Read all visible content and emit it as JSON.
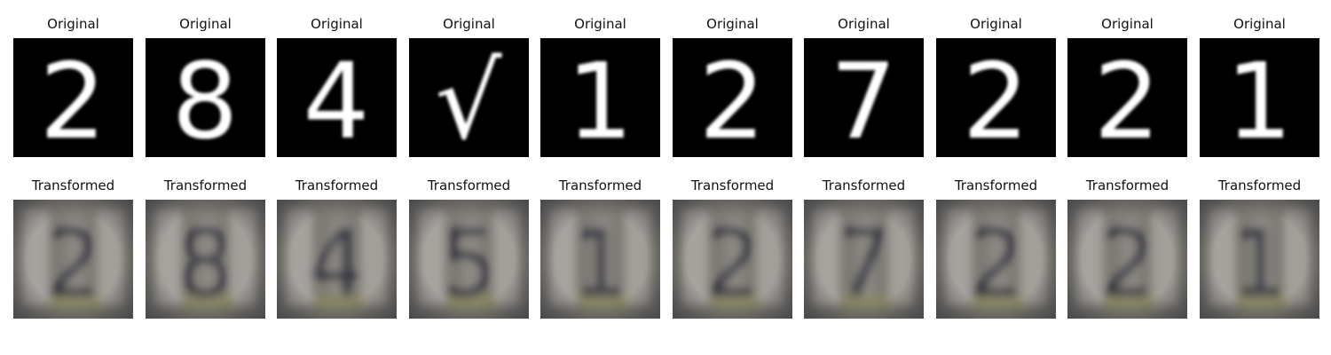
{
  "originals": [
    {
      "title": "Original",
      "digit": "2"
    },
    {
      "title": "Original",
      "digit": "8"
    },
    {
      "title": "Original",
      "digit": "4"
    },
    {
      "title": "Original",
      "digit": "√"
    },
    {
      "title": "Original",
      "digit": "1"
    },
    {
      "title": "Original",
      "digit": "2"
    },
    {
      "title": "Original",
      "digit": "7"
    },
    {
      "title": "Original",
      "digit": "2"
    },
    {
      "title": "Original",
      "digit": "2"
    },
    {
      "title": "Original",
      "digit": "1"
    }
  ],
  "transformed": [
    {
      "title": "Transformed",
      "hint": "2"
    },
    {
      "title": "Transformed",
      "hint": "8"
    },
    {
      "title": "Transformed",
      "hint": "4"
    },
    {
      "title": "Transformed",
      "hint": "5"
    },
    {
      "title": "Transformed",
      "hint": "1"
    },
    {
      "title": "Transformed",
      "hint": "2"
    },
    {
      "title": "Transformed",
      "hint": "7"
    },
    {
      "title": "Transformed",
      "hint": "2"
    },
    {
      "title": "Transformed",
      "hint": "2"
    },
    {
      "title": "Transformed",
      "hint": "1"
    }
  ],
  "colors": {
    "digit_background": "#000000",
    "digit_stroke": "#ffffff",
    "transformed_base": "#7d7a74",
    "transformed_dark": "#1e2233",
    "transformed_light": "#c9c3c0"
  }
}
